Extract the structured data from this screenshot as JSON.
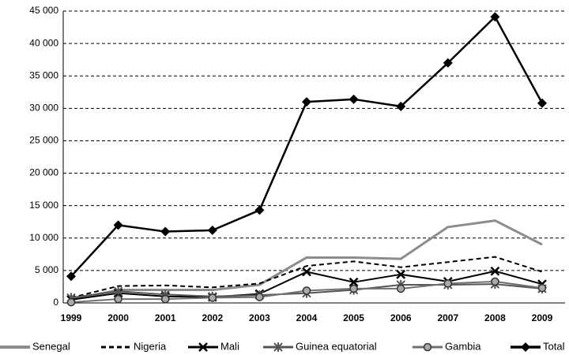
{
  "chart_data": {
    "type": "line",
    "categories": [
      "1999",
      "2000",
      "2001",
      "2002",
      "2003",
      "2004",
      "2005",
      "2006",
      "2007",
      "2008",
      "2009"
    ],
    "series": [
      {
        "name": "Senegal",
        "color": "#8c8c8c",
        "width": 3,
        "dash": false,
        "marker": "none",
        "values": [
          500,
          2000,
          2000,
          2000,
          2800,
          7000,
          7000,
          6800,
          11700,
          12700,
          9000
        ]
      },
      {
        "name": "Nigeria",
        "color": "#000000",
        "width": 2,
        "dash": true,
        "marker": "none",
        "values": [
          800,
          2600,
          2700,
          2400,
          3000,
          5700,
          6400,
          5500,
          6300,
          7100,
          4800
        ]
      },
      {
        "name": "Mali",
        "color": "#000000",
        "width": 2,
        "dash": false,
        "marker": "cross",
        "values": [
          500,
          1500,
          1000,
          900,
          1400,
          4800,
          3200,
          4400,
          3300,
          4900,
          2900
        ]
      },
      {
        "name": "Guinea equatorial",
        "color": "#555555",
        "width": 2,
        "dash": false,
        "marker": "star",
        "values": [
          800,
          1800,
          1300,
          1000,
          1200,
          1500,
          2000,
          2800,
          2800,
          2900,
          2200
        ]
      },
      {
        "name": "Gambia",
        "color": "#707070",
        "width": 2,
        "dash": false,
        "marker": "circle",
        "values": [
          100,
          600,
          600,
          800,
          900,
          1900,
          2200,
          2200,
          3000,
          3300,
          2300
        ]
      },
      {
        "name": "Total",
        "color": "#000000",
        "width": 2.5,
        "dash": false,
        "marker": "diamond",
        "values": [
          4100,
          12000,
          11000,
          11200,
          14300,
          31000,
          31400,
          30300,
          37000,
          44100,
          30800
        ]
      }
    ],
    "ylim": [
      0,
      45000
    ],
    "yticks": [
      0,
      {
        "value": 5000,
        "label": "5 000"
      },
      {
        "value": 10000,
        "label": "10 000"
      },
      {
        "value": 15000,
        "label": "15 000"
      },
      {
        "value": 20000,
        "label": "20 000"
      },
      {
        "value": 25000,
        "label": "25 000"
      },
      {
        "value": 30000,
        "label": "30 000"
      },
      {
        "value": 35000,
        "label": "35 000"
      },
      {
        "value": 40000,
        "label": "40 000"
      },
      {
        "value": 45000,
        "label": "45 000"
      }
    ],
    "grid": true,
    "legend": "bottom"
  }
}
